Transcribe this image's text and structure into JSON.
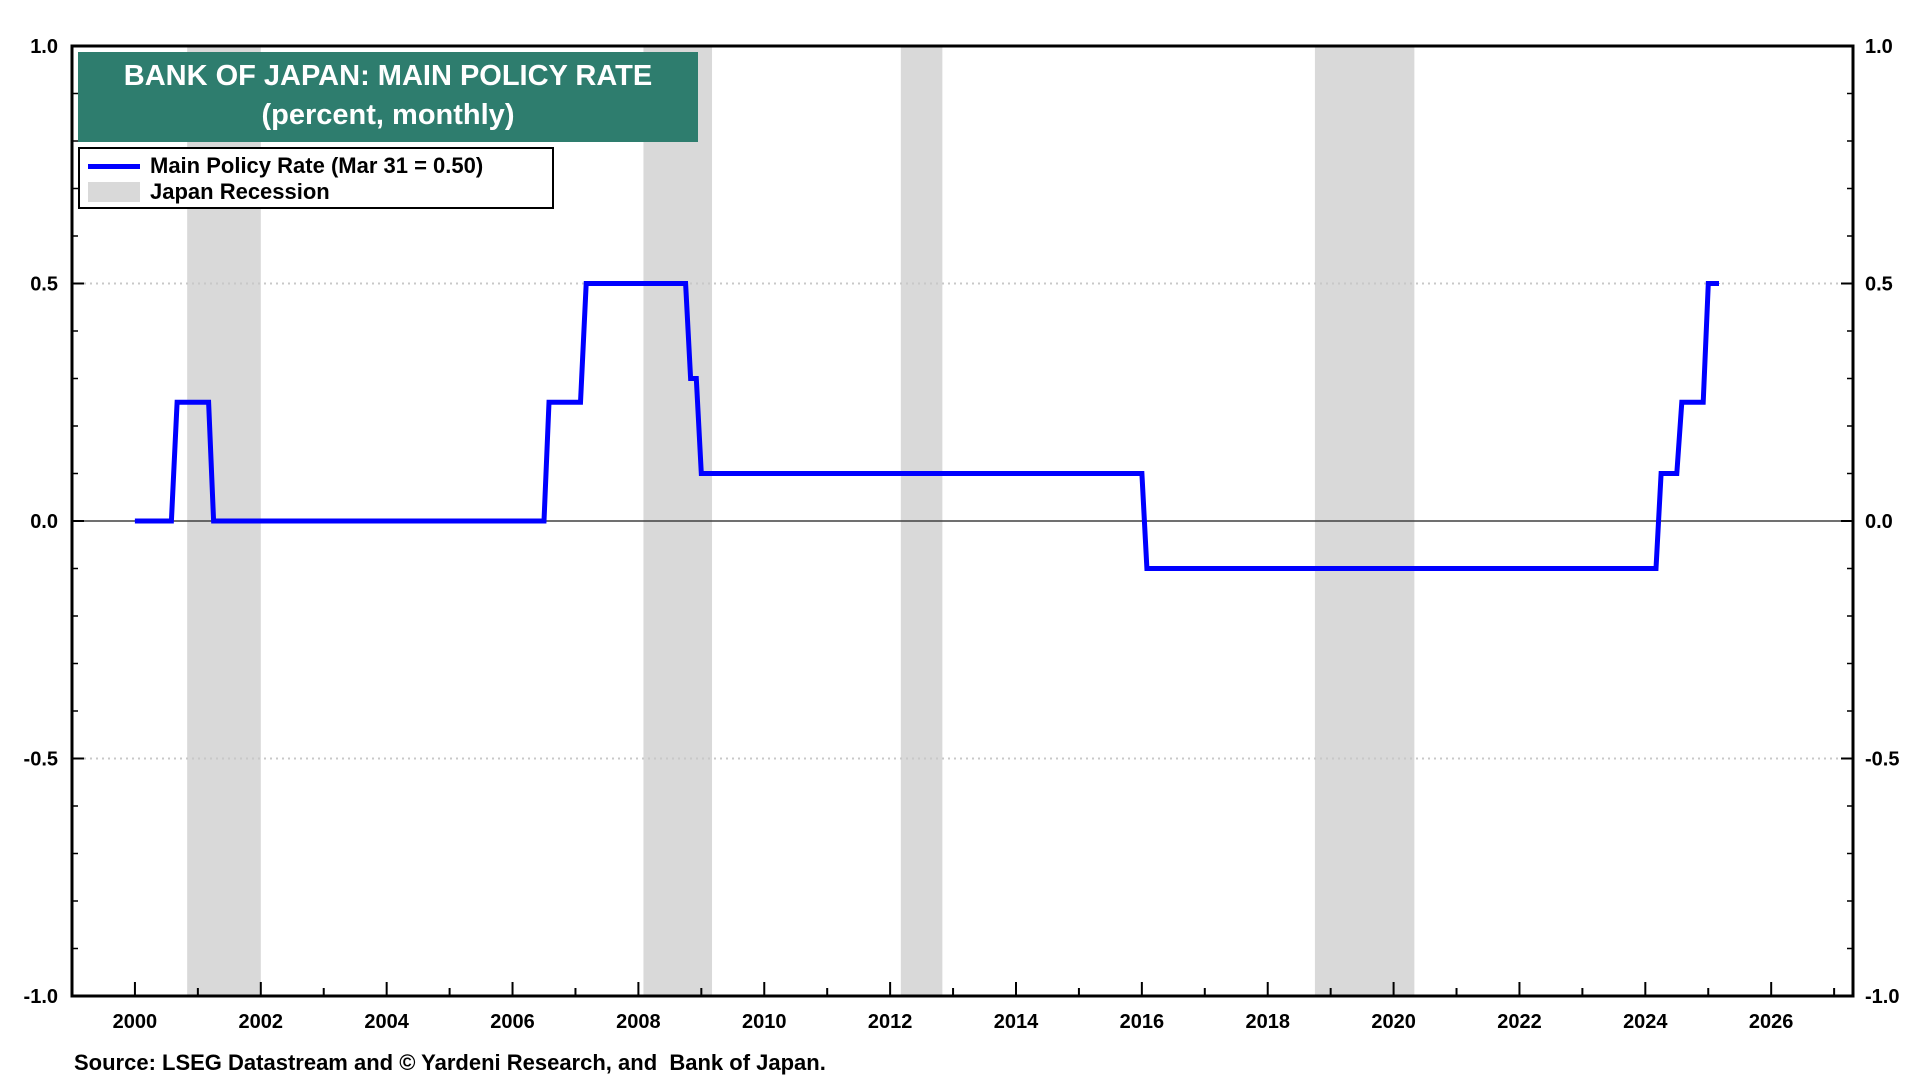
{
  "title": "BANK OF JAPAN: MAIN POLICY RATE",
  "subtitle": "(percent, monthly)",
  "legend": {
    "series_label": "Main Policy Rate (Mar 31 = 0.50)",
    "recession_label": "Japan Recession"
  },
  "source": "Source: LSEG Datastream and © Yardeni Research, and  Bank of Japan.",
  "colors": {
    "series": "#0000ff",
    "recession": "#d9d9d9",
    "title_bg": "#2e7d6e",
    "title_text": "#ffffff",
    "zero_line": "#404040",
    "grid": "#c8c8c8"
  },
  "chart_data": {
    "type": "line",
    "title": "BANK OF JAPAN: MAIN POLICY RATE",
    "subtitle": "(percent, monthly)",
    "x_unit": "year",
    "xlim": [
      1999.0,
      2027.3
    ],
    "ylim": [
      -1.0,
      1.0
    ],
    "x_ticks": [
      2000,
      2002,
      2004,
      2006,
      2008,
      2010,
      2012,
      2014,
      2016,
      2018,
      2020,
      2022,
      2024,
      2026
    ],
    "y_ticks": [
      1.0,
      0.5,
      0.0,
      -0.5,
      -1.0
    ],
    "y_tick_labels": [
      "1.0",
      "0.5",
      "0.0",
      "-0.5",
      "-1.0"
    ],
    "grid": true,
    "legend_position": "top-left",
    "recessions": [
      {
        "start": 2000.83,
        "end": 2002.0
      },
      {
        "start": 2008.08,
        "end": 2009.17
      },
      {
        "start": 2012.17,
        "end": 2012.83
      },
      {
        "start": 2018.75,
        "end": 2020.33
      }
    ],
    "series": [
      {
        "name": "Main Policy Rate (Mar 31 = 0.50)",
        "points": [
          [
            2000.0,
            0.0
          ],
          [
            2000.58,
            0.0
          ],
          [
            2000.67,
            0.25
          ],
          [
            2001.17,
            0.25
          ],
          [
            2001.25,
            0.0
          ],
          [
            2006.5,
            0.0
          ],
          [
            2006.58,
            0.25
          ],
          [
            2007.08,
            0.25
          ],
          [
            2007.17,
            0.5
          ],
          [
            2008.75,
            0.5
          ],
          [
            2008.83,
            0.3
          ],
          [
            2008.92,
            0.3
          ],
          [
            2009.0,
            0.1
          ],
          [
            2016.0,
            0.1
          ],
          [
            2016.08,
            -0.1
          ],
          [
            2024.17,
            -0.1
          ],
          [
            2024.25,
            0.1
          ],
          [
            2024.5,
            0.1
          ],
          [
            2024.58,
            0.25
          ],
          [
            2024.92,
            0.25
          ],
          [
            2025.0,
            0.5
          ],
          [
            2025.17,
            0.5
          ]
        ]
      }
    ]
  }
}
